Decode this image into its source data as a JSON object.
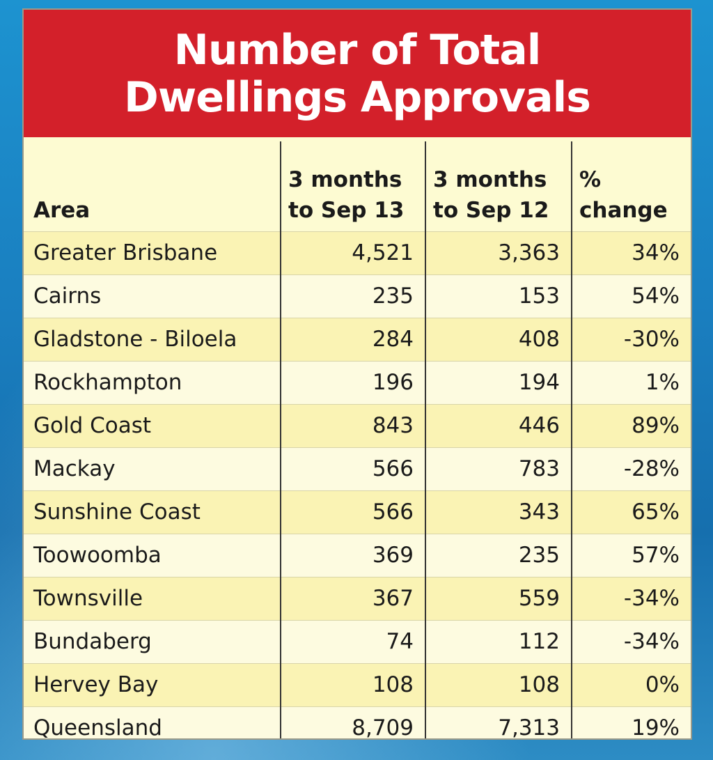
{
  "chart_data": {
    "type": "table",
    "title": [
      "Number of Total",
      "Dwellings Approvals"
    ],
    "columns": [
      {
        "key": "area",
        "label": [
          "",
          "Area"
        ]
      },
      {
        "key": "sep13",
        "label": [
          "3 months",
          "to Sep 13"
        ]
      },
      {
        "key": "sep12",
        "label": [
          "3 months",
          "to Sep 12"
        ]
      },
      {
        "key": "pct",
        "label": [
          "%",
          "change"
        ]
      }
    ],
    "rows": [
      {
        "area": "Greater Brisbane",
        "sep13": "4,521",
        "sep12": "3,363",
        "pct": "34%"
      },
      {
        "area": "Cairns",
        "sep13": "235",
        "sep12": "153",
        "pct": "54%"
      },
      {
        "area": "Gladstone - Biloela",
        "sep13": "284",
        "sep12": "408",
        "pct": "-30%"
      },
      {
        "area": "Rockhampton",
        "sep13": "196",
        "sep12": "194",
        "pct": "1%"
      },
      {
        "area": "Gold Coast",
        "sep13": "843",
        "sep12": "446",
        "pct": "89%"
      },
      {
        "area": "Mackay",
        "sep13": "566",
        "sep12": "783",
        "pct": "-28%"
      },
      {
        "area": "Sunshine Coast",
        "sep13": "566",
        "sep12": "343",
        "pct": "65%"
      },
      {
        "area": "Toowoomba",
        "sep13": "369",
        "sep12": "235",
        "pct": "57%"
      },
      {
        "area": "Townsville",
        "sep13": "367",
        "sep12": "559",
        "pct": "-34%"
      },
      {
        "area": "Bundaberg",
        "sep13": "74",
        "sep12": "112",
        "pct": "-34%"
      },
      {
        "area": "Hervey Bay",
        "sep13": "108",
        "sep12": "108",
        "pct": "0%"
      },
      {
        "area": "Queensland",
        "sep13": "8,709",
        "sep12": "7,313",
        "pct": "19%"
      }
    ],
    "colors": {
      "title_background": "#d3202a",
      "title_text": "#ffffff",
      "table_background": "#fdfbd2",
      "shaded_row": "#faf3b4",
      "page_background": "#1a7fc0"
    }
  }
}
